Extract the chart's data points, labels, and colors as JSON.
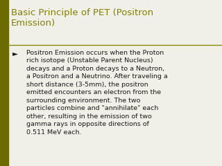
{
  "title_line1": "Basic Principle of PET (Positron",
  "title_line2": "Emission)",
  "title_color": "#808000",
  "separator_color": "#8B8B00",
  "background_color": "#f0f0e8",
  "left_strip_color": "#6b6b00",
  "bullet_char": "►",
  "body_text": "Positron Emission occurs when the Proton\nrich isotope (Unstable Parent Nucleus)\ndecays and a Proton decays to a Neutron,\na Positron and a Neutrino. After traveling a\nshort distance (3-5mm), the positron\nemitted encounters an electron from the\nsurrounding environment. The two\nparticles combine and \"annihilate\" each\nother, resulting in the emission of two\ngamma rays in opposite directions of\n0.511 MeV each.",
  "body_color": "#1a1a1a",
  "title_fontsize": 9.5,
  "body_fontsize": 6.8,
  "bullet_fontsize": 7.5
}
